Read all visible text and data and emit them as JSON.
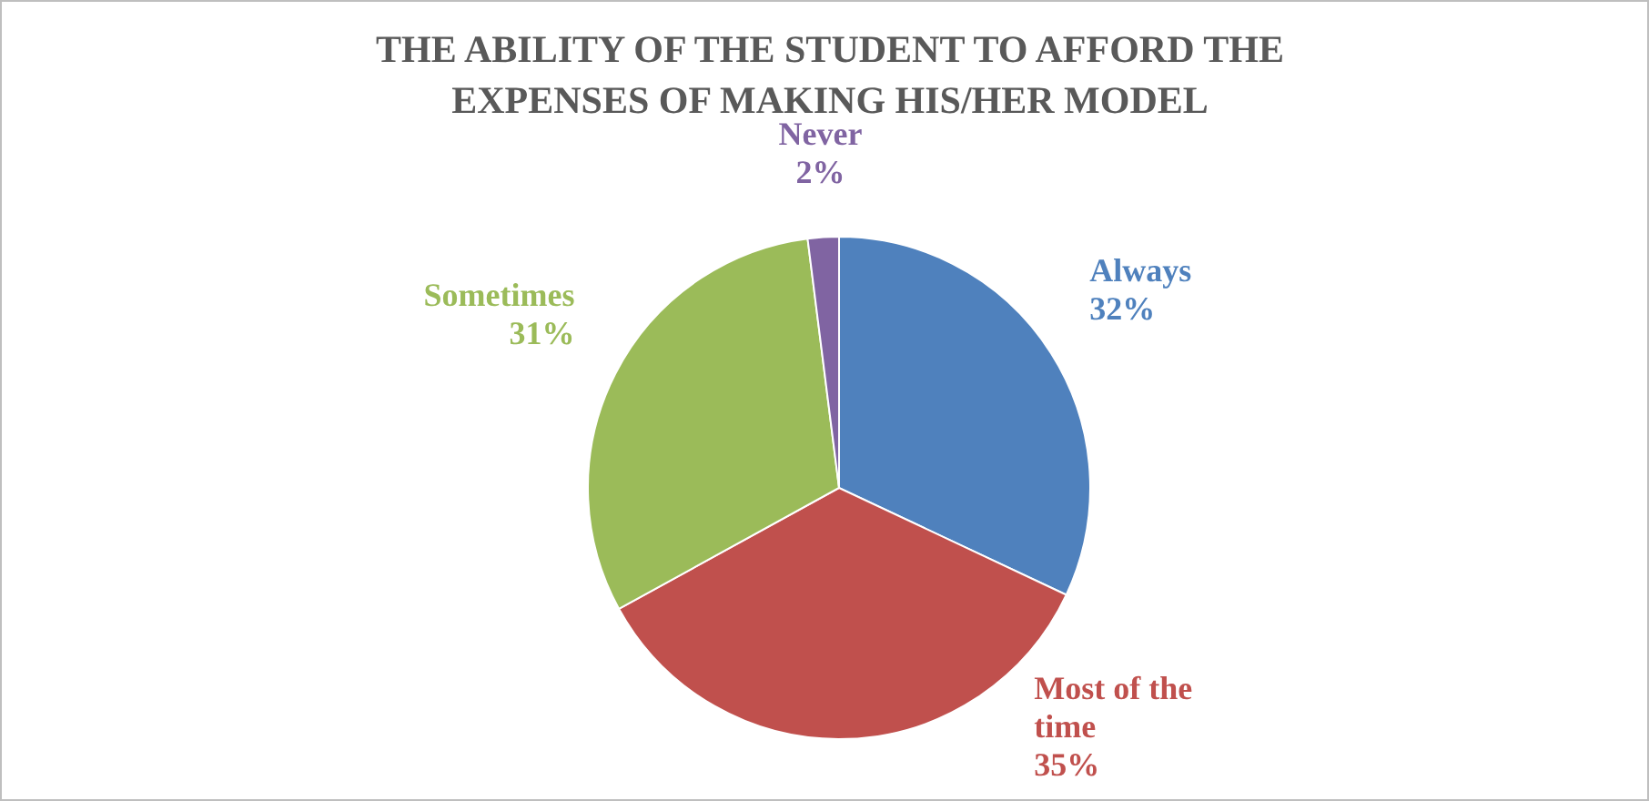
{
  "chart_data": {
    "type": "pie",
    "title": "THE ABILITY OF THE STUDENT TO AFFORD THE EXPENSES OF MAKING HIS/HER MODEL",
    "categories": [
      "Always",
      "Most of the time",
      "Sometimes",
      "Never"
    ],
    "values": [
      32,
      35,
      31,
      2
    ],
    "colors": [
      "#4f81bd",
      "#c0504d",
      "#9bbb59",
      "#8064a2"
    ],
    "value_labels": [
      "32%",
      "35%",
      "31%",
      "2%"
    ],
    "legend": false
  }
}
